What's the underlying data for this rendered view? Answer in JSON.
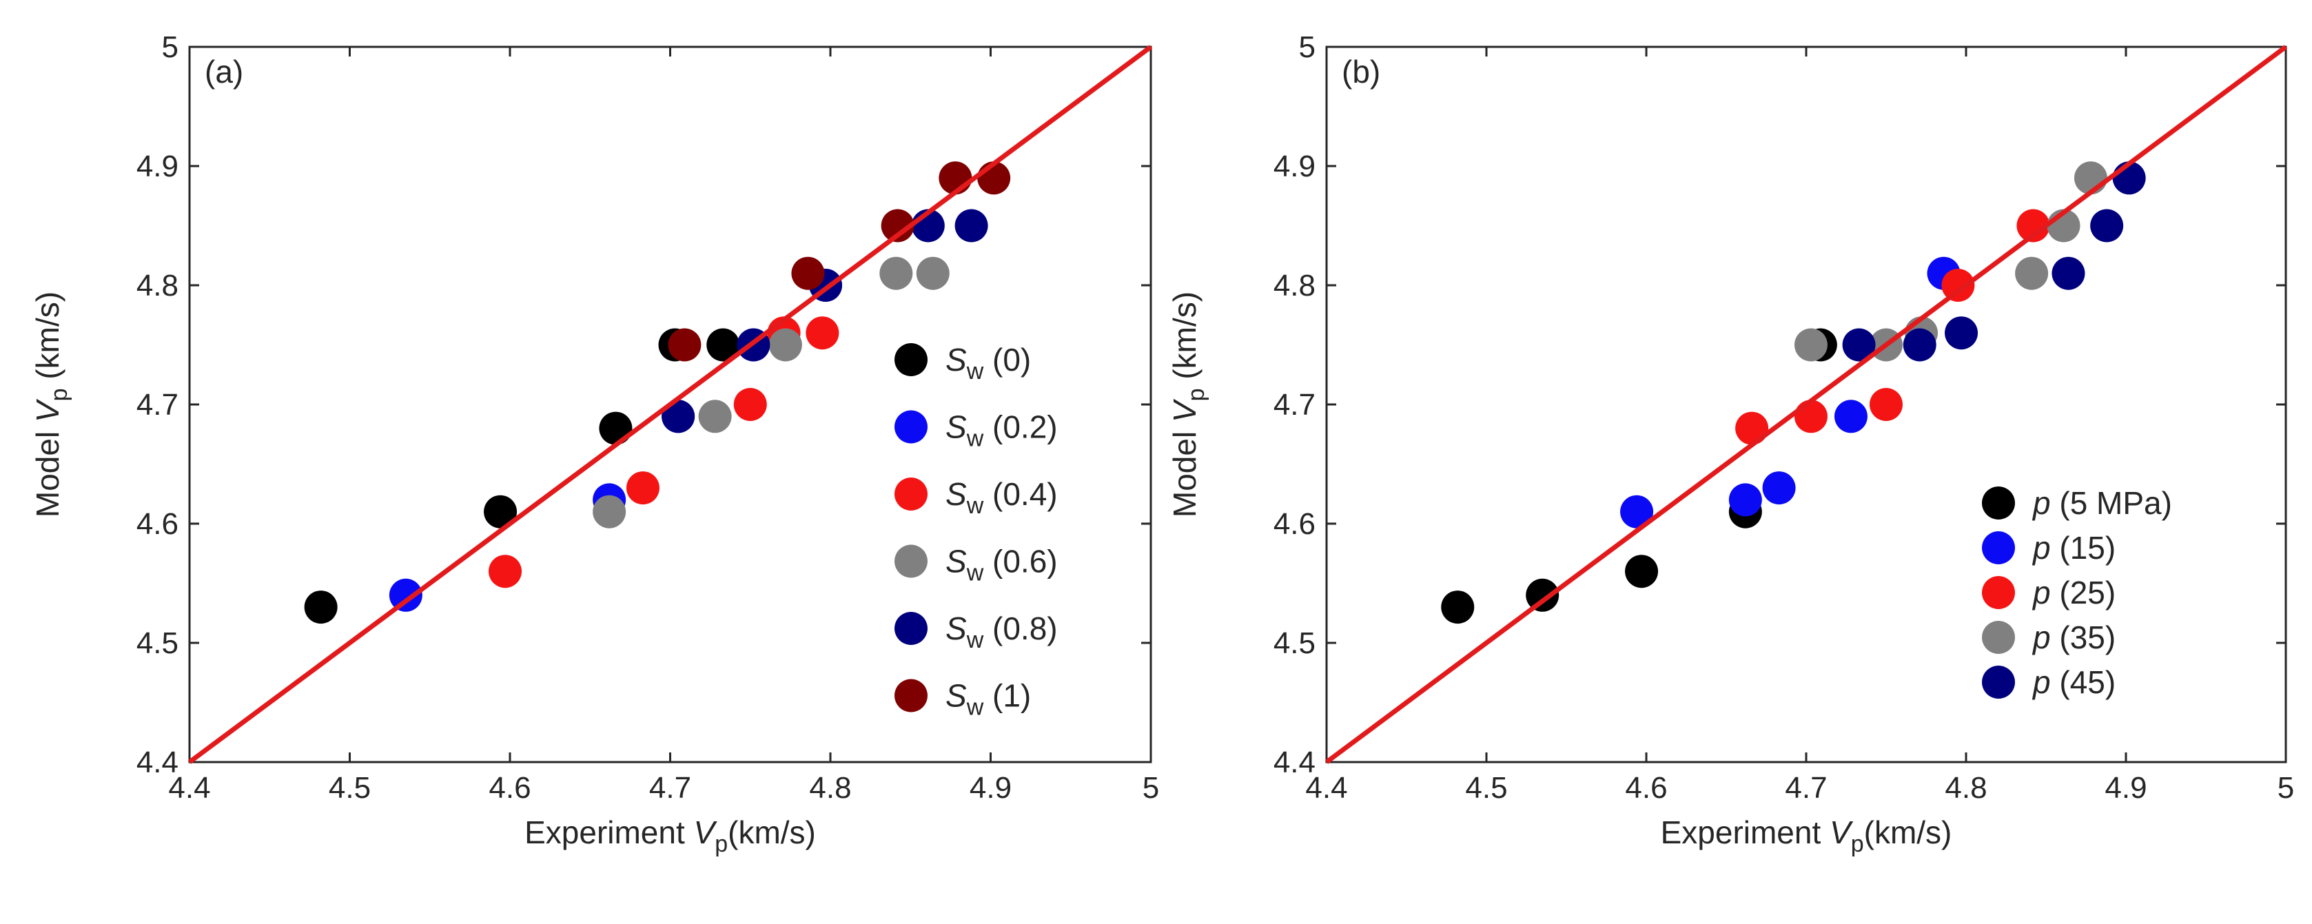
{
  "colors": {
    "black": "#000000",
    "blue": "#0a0af5",
    "red": "#f51414",
    "gray": "#808080",
    "navy": "#00007f",
    "maroon": "#7f0000",
    "fit_line": "#e31a1c",
    "axes": "#262626"
  },
  "chart_data": [
    {
      "type": "scatter",
      "panel_label": "(a)",
      "xlabel": {
        "text": "Experiment ",
        "var": "V",
        "sub": "p",
        "unit": "(km/s)"
      },
      "ylabel": {
        "text": "Model ",
        "var": "V",
        "sub": "p",
        "unit": " (km/s)"
      },
      "xlim": [
        4.4,
        5.0
      ],
      "ylim": [
        4.4,
        5.0
      ],
      "xticks": [
        "4.4",
        "4.5",
        "4.6",
        "4.7",
        "4.8",
        "4.9",
        "5"
      ],
      "yticks": [
        "4.4",
        "4.5",
        "4.6",
        "4.7",
        "4.8",
        "4.9",
        "5"
      ],
      "reference_line": {
        "x": [
          4.4,
          5.0
        ],
        "y": [
          4.4,
          5.0
        ],
        "color": "red"
      },
      "legend_position": "right-center",
      "series": [
        {
          "name": "S",
          "sub": "w",
          "suffix": " (0)",
          "color": "black",
          "x": [
            4.482,
            4.594,
            4.666,
            4.703,
            4.733
          ],
          "y": [
            4.53,
            4.61,
            4.68,
            4.75,
            4.75
          ]
        },
        {
          "name": "S",
          "sub": "w",
          "suffix": " (0.2)",
          "color": "blue",
          "x": [
            4.535,
            4.662,
            4.705,
            4.752,
            4.797
          ],
          "y": [
            4.54,
            4.62,
            4.69,
            4.75,
            4.8
          ]
        },
        {
          "name": "S",
          "sub": "w",
          "suffix": " (0.4)",
          "color": "red",
          "x": [
            4.597,
            4.683,
            4.75,
            4.771,
            4.795
          ],
          "y": [
            4.56,
            4.63,
            4.7,
            4.76,
            4.76
          ]
        },
        {
          "name": "S",
          "sub": "w",
          "suffix": " (0.6)",
          "color": "gray",
          "x": [
            4.662,
            4.728,
            4.772,
            4.841,
            4.864
          ],
          "y": [
            4.61,
            4.69,
            4.75,
            4.81,
            4.81
          ]
        },
        {
          "name": "S",
          "sub": "w",
          "suffix": " (0.8)",
          "color": "navy",
          "x": [
            4.705,
            4.752,
            4.797,
            4.861,
            4.888
          ],
          "y": [
            4.69,
            4.75,
            4.8,
            4.85,
            4.85
          ]
        },
        {
          "name": "S",
          "sub": "w",
          "suffix": " (1)",
          "color": "maroon",
          "x": [
            4.709,
            4.786,
            4.842,
            4.878,
            4.902
          ],
          "y": [
            4.75,
            4.81,
            4.85,
            4.89,
            4.89
          ]
        }
      ]
    },
    {
      "type": "scatter",
      "panel_label": "(b)",
      "xlabel": {
        "text": "Experiment ",
        "var": "V",
        "sub": "p",
        "unit": "(km/s)"
      },
      "ylabel": {
        "text": "Model ",
        "var": "V",
        "sub": "p",
        "unit": " (km/s)"
      },
      "xlim": [
        4.4,
        5.0
      ],
      "ylim": [
        4.4,
        5.0
      ],
      "xticks": [
        "4.4",
        "4.5",
        "4.6",
        "4.7",
        "4.8",
        "4.9",
        "5"
      ],
      "yticks": [
        "4.4",
        "4.5",
        "4.6",
        "4.7",
        "4.8",
        "4.9",
        "5"
      ],
      "reference_line": {
        "x": [
          4.4,
          5.0
        ],
        "y": [
          4.4,
          5.0
        ],
        "color": "red"
      },
      "legend_position": "bottom-right",
      "series": [
        {
          "name": "p",
          "sub": "",
          "suffix": " (5 MPa)",
          "color": "black",
          "x": [
            4.482,
            4.535,
            4.597,
            4.662,
            4.709
          ],
          "y": [
            4.53,
            4.54,
            4.56,
            4.61,
            4.75
          ]
        },
        {
          "name": "p",
          "sub": "",
          "suffix": " (15)",
          "color": "blue",
          "x": [
            4.594,
            4.662,
            4.683,
            4.728,
            4.786
          ],
          "y": [
            4.61,
            4.62,
            4.63,
            4.69,
            4.81
          ]
        },
        {
          "name": "p",
          "sub": "",
          "suffix": " (25)",
          "color": "red",
          "x": [
            4.666,
            4.703,
            4.75,
            4.795,
            4.842
          ],
          "y": [
            4.68,
            4.69,
            4.7,
            4.8,
            4.85
          ]
        },
        {
          "name": "p",
          "sub": "",
          "suffix": " (35)",
          "color": "gray",
          "x": [
            4.703,
            4.75,
            4.772,
            4.841,
            4.861,
            4.878
          ],
          "y": [
            4.75,
            4.75,
            4.76,
            4.81,
            4.85,
            4.89
          ]
        },
        {
          "name": "p",
          "sub": "",
          "suffix": " (45)",
          "color": "navy",
          "x": [
            4.733,
            4.771,
            4.797,
            4.864,
            4.888,
            4.902
          ],
          "y": [
            4.75,
            4.75,
            4.76,
            4.81,
            4.85,
            4.89
          ]
        }
      ]
    }
  ]
}
